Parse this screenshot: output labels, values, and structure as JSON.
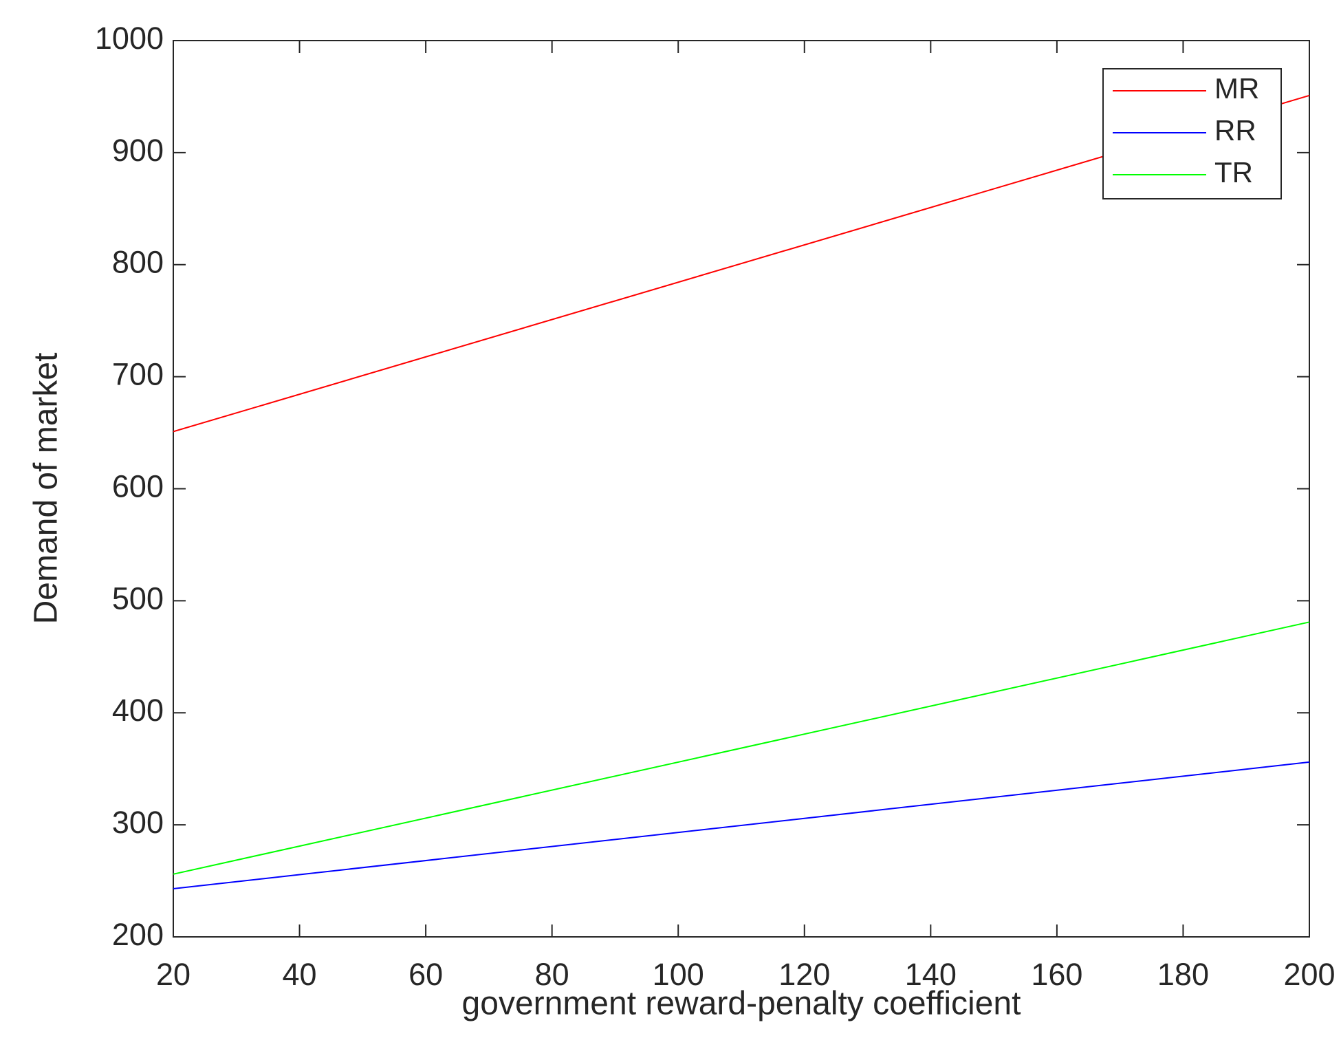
{
  "chart_data": {
    "type": "line",
    "xlabel": "government reward-penalty coefficient",
    "ylabel": "Demand of market",
    "x": [
      20,
      200
    ],
    "series": [
      {
        "name": "MR",
        "color": "#ff0000",
        "values": [
          651,
          951
        ]
      },
      {
        "name": "RR",
        "color": "#0000ff",
        "values": [
          243,
          356
        ]
      },
      {
        "name": "TR",
        "color": "#00ff00",
        "values": [
          256,
          481
        ]
      }
    ],
    "xlim": [
      20,
      200
    ],
    "xticks": [
      20,
      40,
      60,
      80,
      100,
      120,
      140,
      160,
      180,
      200
    ],
    "ylim": [
      200,
      1000
    ],
    "yticks": [
      200,
      300,
      400,
      500,
      600,
      700,
      800,
      900,
      1000
    ],
    "grid": false,
    "legend": "upper right"
  }
}
